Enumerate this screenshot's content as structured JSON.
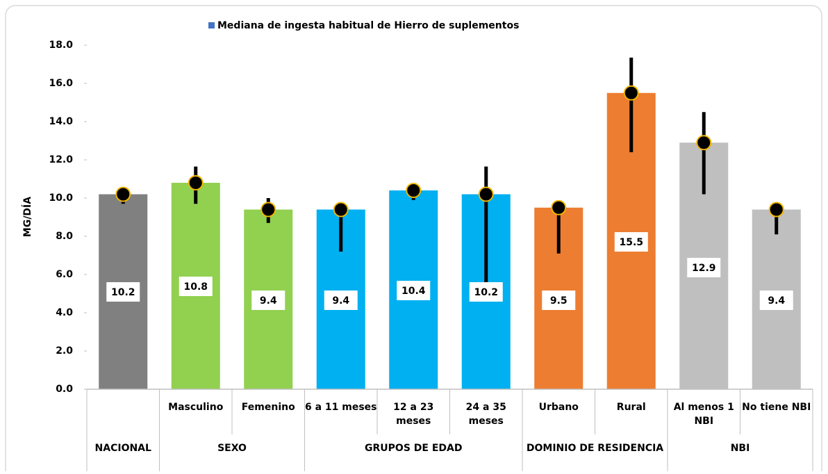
{
  "chart_data": {
    "type": "bar",
    "legend": "Mediana de ingesta habitual de Hierro de suplementos",
    "legend_color": "#4472c4",
    "y_label": "MG/DÍA",
    "categories": [
      null,
      "Masculino",
      "Femenino",
      "6 a 11 meses",
      "12 a 23 meses",
      "24 a 35 meses",
      "Urbano",
      "Rural",
      "Al menos 1 NBI",
      "No tiene NBI"
    ],
    "values": [
      10.2,
      10.8,
      9.4,
      9.4,
      10.4,
      10.2,
      9.5,
      15.5,
      12.9,
      9.4
    ],
    "error_low": [
      9.7,
      9.7,
      8.7,
      7.2,
      9.9,
      5.6,
      7.1,
      12.4,
      10.2,
      8.1
    ],
    "error_high": [
      10.3,
      11.65,
      10.0,
      9.4,
      10.4,
      11.65,
      9.5,
      17.35,
      14.5,
      9.4
    ],
    "colors": [
      "#808080",
      "#92d050",
      "#92d050",
      "#00b0f0",
      "#00b0f0",
      "#00b0f0",
      "#ed7d31",
      "#ed7d31",
      "#bfbfbf",
      "#bfbfbf"
    ],
    "groups": [
      {
        "label": "NACIONAL",
        "span": 1
      },
      {
        "label": "SEXO",
        "span": 2
      },
      {
        "label": "GRUPOS DE EDAD",
        "span": 3
      },
      {
        "label": "DOMINIO DE RESIDENCIA",
        "span": 2
      },
      {
        "label": "NBI",
        "span": 2
      }
    ],
    "ylim": [
      0,
      18
    ],
    "yticks": [
      {
        "value": 0,
        "label": "0.0"
      },
      {
        "value": 2,
        "label": "2.0"
      },
      {
        "value": 4,
        "label": "4.0"
      },
      {
        "value": 6,
        "label": "6.0"
      },
      {
        "value": 8,
        "label": "8.0"
      },
      {
        "value": 10,
        "label": "10.0"
      },
      {
        "value": 12,
        "label": "12.0"
      },
      {
        "value": 14,
        "label": "14.0"
      },
      {
        "value": 16,
        "label": "16.0"
      },
      {
        "value": 18,
        "label": "18.0"
      }
    ]
  }
}
